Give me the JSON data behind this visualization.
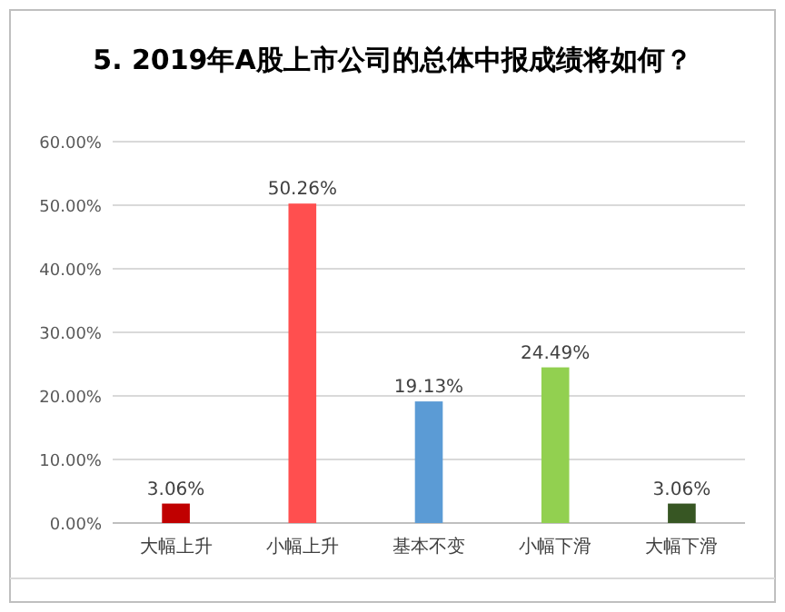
{
  "chart_data": {
    "type": "bar",
    "title": "5.  2019年A股上市公司的总体中报成绩将如何？",
    "categories": [
      "大幅上升",
      "小幅上升",
      "基本不变",
      "小幅下滑",
      "大幅下滑"
    ],
    "values": [
      3.06,
      50.26,
      19.13,
      24.49,
      3.06
    ],
    "colors": [
      "#c00000",
      "#ff4f4f",
      "#5b9bd5",
      "#92d050",
      "#375623"
    ],
    "value_labels": [
      "3.06%",
      "50.26%",
      "19.13%",
      "24.49%",
      "3.06%"
    ],
    "ylim": [
      0,
      60
    ],
    "yticks": [
      {
        "value": 0,
        "label": "0.00%"
      },
      {
        "value": 10,
        "label": "10.00%"
      },
      {
        "value": 20,
        "label": "20.00%"
      },
      {
        "value": 30,
        "label": "30.00%"
      },
      {
        "value": 40,
        "label": "40.00%"
      },
      {
        "value": 50,
        "label": "50.00%"
      },
      {
        "value": 60,
        "label": "60.00%"
      }
    ],
    "grid": "y"
  }
}
